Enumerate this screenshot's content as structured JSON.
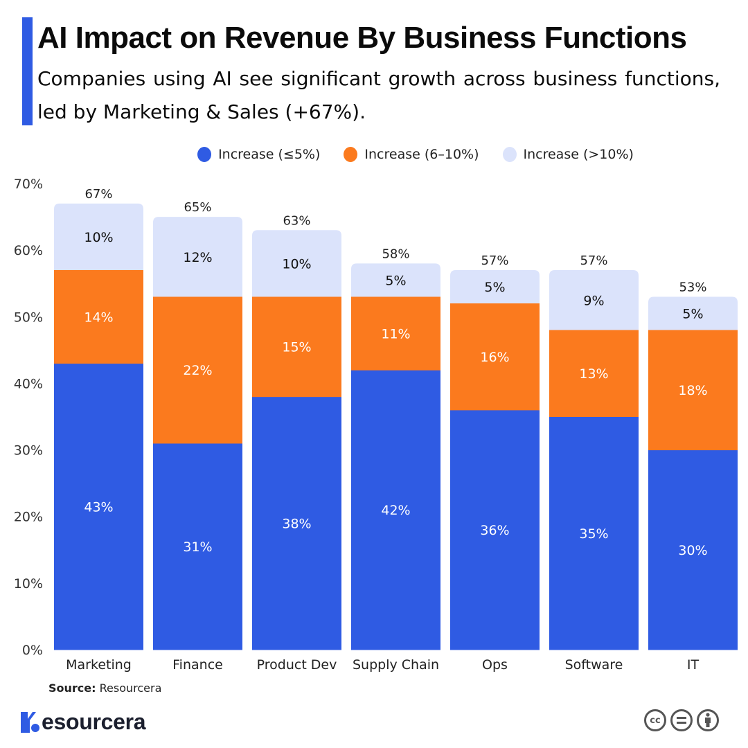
{
  "header": {
    "title": "AI Impact on Revenue By Business Functions",
    "subtitle": "Companies using AI see significant growth across business functions, led by Marketing & Sales (+67%)."
  },
  "colors": {
    "accent": "#2f5be3",
    "low": "#2f5be3",
    "mid": "#fb7a1e",
    "high": "#dbe3fb"
  },
  "chart_data": {
    "type": "bar",
    "stacked": true,
    "title": "AI Impact on Revenue By Business Functions",
    "xlabel": "",
    "ylabel": "",
    "ylim": [
      0,
      70
    ],
    "yticks": [
      "0%",
      "10%",
      "20%",
      "30%",
      "40%",
      "50%",
      "60%",
      "70%"
    ],
    "grid": false,
    "legend_position": "top-center",
    "categories": [
      "Marketing",
      "Finance",
      "Product Dev",
      "Supply Chain",
      "Ops",
      "Software",
      "IT"
    ],
    "series": [
      {
        "name": "Increase (≤5%)",
        "color": "#2f5be3",
        "values": [
          43,
          31,
          38,
          42,
          36,
          35,
          30
        ]
      },
      {
        "name": "Increase (6–10%)",
        "color": "#fb7a1e",
        "values": [
          14,
          22,
          15,
          11,
          16,
          13,
          18
        ]
      },
      {
        "name": "Increase (>10%)",
        "color": "#dbe3fb",
        "values": [
          10,
          12,
          10,
          5,
          5,
          9,
          5
        ]
      }
    ],
    "totals": [
      67,
      65,
      63,
      58,
      57,
      57,
      53
    ]
  },
  "legend": [
    {
      "label": "Increase (≤5%)",
      "color": "#2f5be3"
    },
    {
      "label": "Increase (6–10%)",
      "color": "#fb7a1e"
    },
    {
      "label": "Increase (>10%)",
      "color": "#dbe3fb"
    }
  ],
  "footer": {
    "source_label": "Source:",
    "source_value": "Resourcera",
    "logo_text": "esourcera",
    "license_icons": [
      "cc-icon",
      "no-derivatives-icon",
      "attribution-icon"
    ],
    "cc_text": "cc"
  }
}
